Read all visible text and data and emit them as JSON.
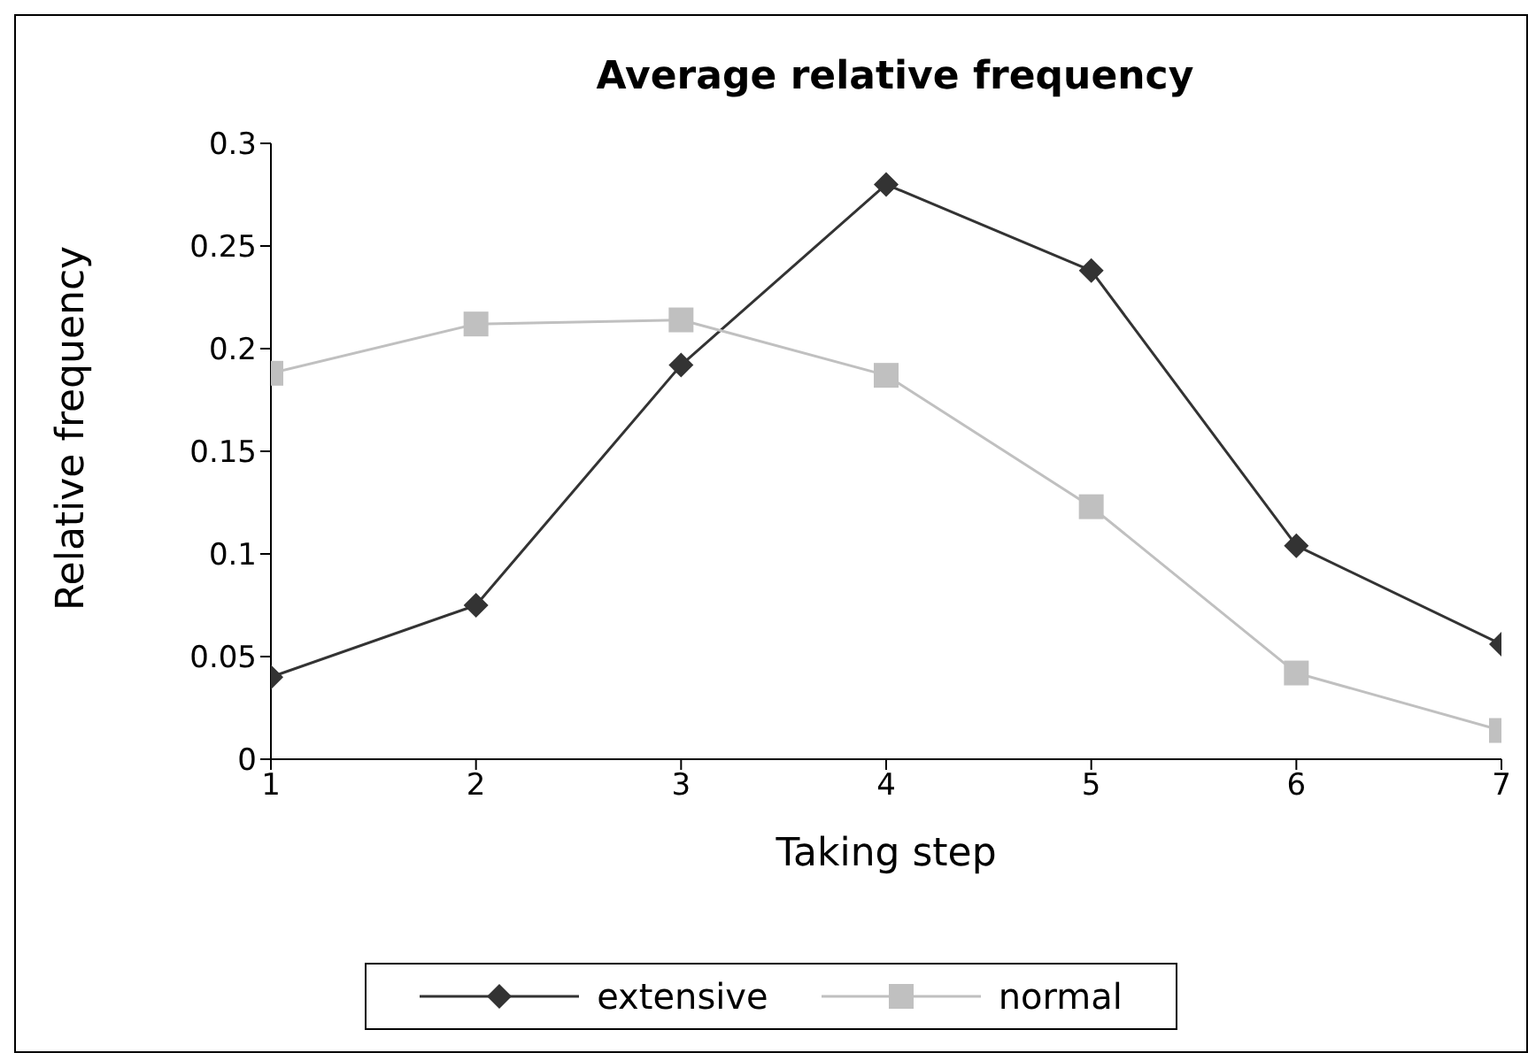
{
  "chart_data": {
    "type": "line",
    "title": "Average relative frequency",
    "xlabel": "Taking step",
    "ylabel": "Relative frequency",
    "x": [
      1,
      2,
      3,
      4,
      5,
      6,
      7
    ],
    "xlim": [
      1,
      7
    ],
    "xticks": [
      1,
      2,
      3,
      4,
      5,
      6,
      7
    ],
    "ylim": [
      0,
      0.3
    ],
    "yticks": [
      0,
      0.05,
      0.1,
      0.15,
      0.2,
      0.25,
      0.3
    ],
    "series": [
      {
        "name": "extensive",
        "color": "#333333",
        "marker": "diamond",
        "values": [
          0.04,
          0.075,
          0.192,
          0.28,
          0.238,
          0.104,
          0.056
        ]
      },
      {
        "name": "normal",
        "color": "#c0c0c0",
        "marker": "square",
        "values": [
          0.188,
          0.212,
          0.214,
          0.187,
          0.123,
          0.042,
          0.014
        ]
      }
    ],
    "grid": false,
    "legend": "bottom",
    "line_style": "solid"
  }
}
